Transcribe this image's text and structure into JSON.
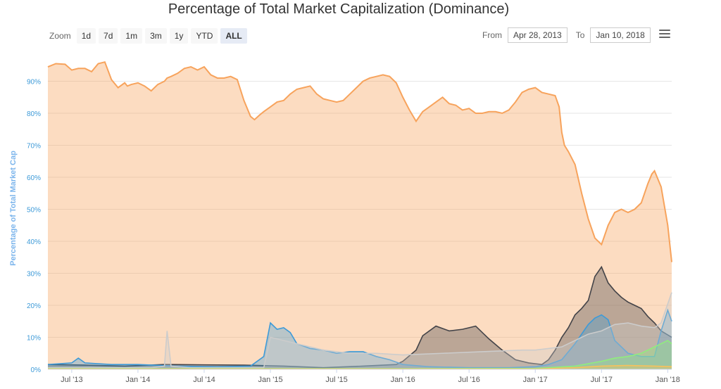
{
  "chart_data": {
    "type": "area",
    "title": "Percentage of Total Market Capitalization (Dominance)",
    "ylabel": "Percentage of Total Market Cap",
    "ylim": [
      0,
      100
    ],
    "yticks": [
      "0%",
      "10%",
      "20%",
      "30%",
      "40%",
      "50%",
      "60%",
      "70%",
      "80%",
      "90%"
    ],
    "ytick_values": [
      0,
      10,
      20,
      30,
      40,
      50,
      60,
      70,
      80,
      90
    ],
    "xticks": [
      "Jul '13",
      "Jan '14",
      "Jul '14",
      "Jan '15",
      "Jul '15",
      "Jan '16",
      "Jul '16",
      "Jan '17",
      "Jul '17",
      "Jan '18"
    ],
    "xtick_values": [
      2013.5,
      2014.0,
      2014.5,
      2015.0,
      2015.5,
      2016.0,
      2016.5,
      2017.0,
      2017.5,
      2018.0
    ],
    "xlim": [
      2013.32,
      2018.03
    ],
    "grid": true,
    "legend": "none",
    "series": [
      {
        "color": "#f7a35c",
        "x": [
          2013.32,
          2013.38,
          2013.45,
          2013.5,
          2013.55,
          2013.6,
          2013.65,
          2013.7,
          2013.75,
          2013.8,
          2013.85,
          2013.9,
          2013.92,
          2013.95,
          2014.0,
          2014.05,
          2014.1,
          2014.15,
          2014.2,
          2014.22,
          2014.25,
          2014.3,
          2014.35,
          2014.4,
          2014.45,
          2014.5,
          2014.55,
          2014.6,
          2014.65,
          2014.7,
          2014.75,
          2014.8,
          2014.85,
          2014.88,
          2014.92,
          2014.95,
          2015.0,
          2015.05,
          2015.1,
          2015.15,
          2015.2,
          2015.25,
          2015.3,
          2015.35,
          2015.4,
          2015.45,
          2015.5,
          2015.55,
          2015.6,
          2015.65,
          2015.7,
          2015.75,
          2015.8,
          2015.85,
          2015.9,
          2015.95,
          2016.0,
          2016.05,
          2016.1,
          2016.15,
          2016.2,
          2016.25,
          2016.3,
          2016.35,
          2016.4,
          2016.45,
          2016.5,
          2016.55,
          2016.6,
          2016.65,
          2016.7,
          2016.75,
          2016.8,
          2016.85,
          2016.9,
          2016.95,
          2017.0,
          2017.05,
          2017.1,
          2017.15,
          2017.18,
          2017.2,
          2017.22,
          2017.25,
          2017.3,
          2017.35,
          2017.4,
          2017.45,
          2017.5,
          2017.55,
          2017.6,
          2017.65,
          2017.7,
          2017.75,
          2017.8,
          2017.85,
          2017.88,
          2017.9,
          2017.95,
          2018.0,
          2018.03
        ],
        "values": [
          94.5,
          95.5,
          95.3,
          93.5,
          94.0,
          94.0,
          93.0,
          95.5,
          96.0,
          90.5,
          88.0,
          89.5,
          88.5,
          89.0,
          89.5,
          88.5,
          87.0,
          89.0,
          90.0,
          91.0,
          91.5,
          92.5,
          94.0,
          94.5,
          93.5,
          94.5,
          92.0,
          91.0,
          91.0,
          91.5,
          90.5,
          84.0,
          79.0,
          78.0,
          79.5,
          80.5,
          82.0,
          83.5,
          84.0,
          86.0,
          87.5,
          88.0,
          88.5,
          86.0,
          84.5,
          84.0,
          83.5,
          84.0,
          86.0,
          88.0,
          90.0,
          91.0,
          91.5,
          92.0,
          91.5,
          89.5,
          85.0,
          81.0,
          77.5,
          80.5,
          82.0,
          83.5,
          85.0,
          83.0,
          82.5,
          81.0,
          81.5,
          80.0,
          80.0,
          80.5,
          80.5,
          80.0,
          81.0,
          83.5,
          86.5,
          87.5,
          88.0,
          86.5,
          86.0,
          85.5,
          82.0,
          74.0,
          70.0,
          68.0,
          64.0,
          55.0,
          47.0,
          41.0,
          39.0,
          45.0,
          49.0,
          50.0,
          49.0,
          50.0,
          52.0,
          58.0,
          61.0,
          62.0,
          57.0,
          45.0,
          33.5
        ]
      },
      {
        "color": "#434348",
        "x": [
          2013.32,
          2013.6,
          2013.9,
          2014.2,
          2014.5,
          2014.8,
          2015.1,
          2015.4,
          2015.7,
          2015.95,
          2016.0,
          2016.1,
          2016.15,
          2016.25,
          2016.35,
          2016.45,
          2016.55,
          2016.65,
          2016.75,
          2016.85,
          2016.95,
          2017.05,
          2017.1,
          2017.15,
          2017.2,
          2017.25,
          2017.3,
          2017.35,
          2017.4,
          2017.45,
          2017.5,
          2017.55,
          2017.6,
          2017.65,
          2017.7,
          2017.75,
          2017.8,
          2017.85,
          2017.9,
          2017.95,
          2018.03
        ],
        "values": [
          1.5,
          1.3,
          1.0,
          1.5,
          1.4,
          1.3,
          1.0,
          0.5,
          1.0,
          1.5,
          2.5,
          6.0,
          10.5,
          13.5,
          12.0,
          12.5,
          13.5,
          9.5,
          6.0,
          3.0,
          2.0,
          1.5,
          3.0,
          6.0,
          10.0,
          13.0,
          17.0,
          19.0,
          21.5,
          29.0,
          32.0,
          27.0,
          24.5,
          22.5,
          21.0,
          20.0,
          19.0,
          16.5,
          14.5,
          12.0,
          10.0
        ]
      },
      {
        "color": "#3d9ad8",
        "x": [
          2013.32,
          2013.5,
          2013.55,
          2013.6,
          2013.8,
          2014.0,
          2014.3,
          2014.6,
          2014.85,
          2014.95,
          2015.0,
          2015.05,
          2015.1,
          2015.15,
          2015.2,
          2015.3,
          2015.4,
          2015.5,
          2015.6,
          2015.7,
          2015.8,
          2015.9,
          2016.0,
          2016.2,
          2016.5,
          2016.8,
          2017.0,
          2017.1,
          2017.2,
          2017.3,
          2017.35,
          2017.4,
          2017.45,
          2017.5,
          2017.55,
          2017.6,
          2017.7,
          2017.8,
          2017.9,
          2017.95,
          2018.0,
          2018.03
        ],
        "values": [
          1.5,
          2.0,
          3.5,
          2.0,
          1.5,
          1.5,
          1.0,
          0.8,
          1.0,
          4.0,
          14.5,
          12.5,
          13.0,
          11.5,
          8.0,
          6.5,
          6.0,
          5.0,
          5.5,
          5.5,
          4.0,
          3.0,
          1.5,
          0.8,
          0.5,
          0.5,
          0.8,
          1.5,
          3.0,
          8.0,
          11.0,
          14.0,
          16.0,
          17.0,
          15.5,
          9.0,
          5.0,
          4.0,
          4.0,
          12.0,
          18.5,
          15.0
        ]
      },
      {
        "color": "#cccccc",
        "x": [
          2013.32,
          2013.8,
          2014.1,
          2014.2,
          2014.22,
          2014.25,
          2014.4,
          2014.7,
          2014.95,
          2015.0,
          2015.2,
          2015.4,
          2015.6,
          2015.8,
          2016.0,
          2016.3,
          2016.6,
          2016.9,
          2017.0,
          2017.2,
          2017.3,
          2017.4,
          2017.5,
          2017.6,
          2017.7,
          2017.8,
          2017.9,
          2017.95,
          2018.03
        ],
        "values": [
          0.5,
          0.5,
          0.5,
          1.0,
          12.0,
          1.0,
          0.5,
          0.5,
          0.5,
          10.0,
          8.0,
          6.0,
          5.0,
          5.0,
          4.5,
          5.0,
          5.5,
          6.0,
          6.0,
          7.0,
          9.0,
          11.0,
          12.0,
          14.0,
          14.5,
          13.5,
          13.0,
          14.5,
          24.0
        ]
      },
      {
        "color": "#90ed7d",
        "x": [
          2013.32,
          2016.0,
          2017.0,
          2017.3,
          2017.5,
          2017.6,
          2017.7,
          2017.8,
          2017.9,
          2018.0,
          2018.03
        ],
        "values": [
          0.2,
          0.2,
          0.3,
          1.0,
          2.5,
          3.5,
          4.0,
          5.0,
          7.0,
          9.0,
          8.0
        ]
      },
      {
        "color": "#f7c25c",
        "x": [
          2013.32,
          2017.0,
          2017.3,
          2017.5,
          2017.7,
          2017.9,
          2018.03
        ],
        "values": [
          0.1,
          0.1,
          0.5,
          1.0,
          1.2,
          1.0,
          0.8
        ]
      }
    ]
  },
  "toolbar": {
    "zoom_label": "Zoom",
    "zoom_buttons": [
      "1d",
      "7d",
      "1m",
      "3m",
      "1y",
      "YTD",
      "ALL"
    ],
    "active": "ALL",
    "from_label": "From",
    "from_value": "Apr 28, 2013",
    "to_label": "To",
    "to_value": "Jan 10, 2018"
  },
  "icons": {
    "menu": "hamburger-menu-icon"
  }
}
